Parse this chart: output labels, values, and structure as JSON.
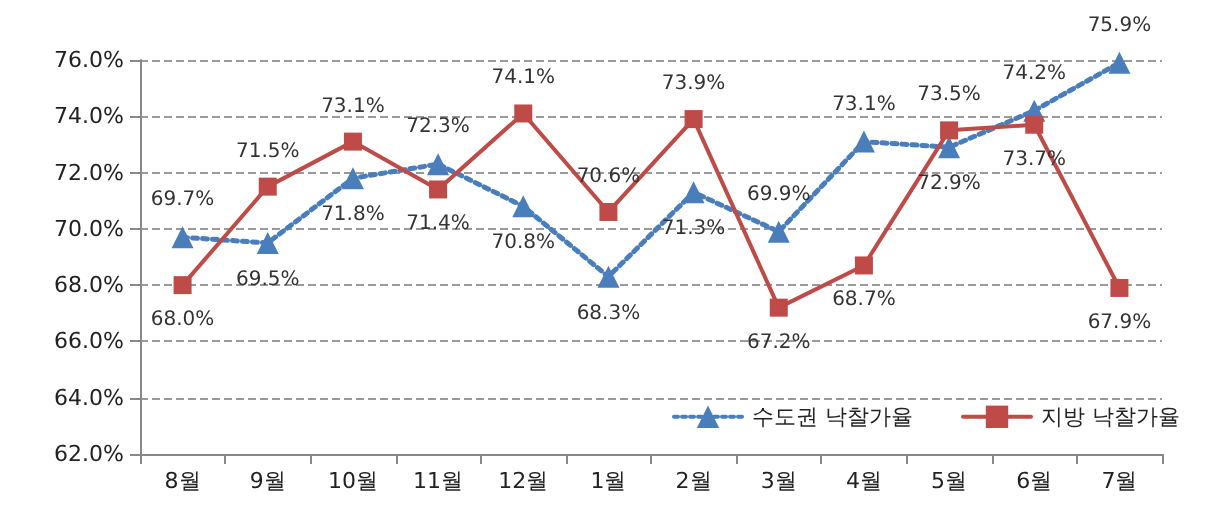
{
  "chart_data": {
    "type": "line",
    "categories": [
      "8월",
      "9월",
      "10월",
      "11월",
      "12월",
      "1월",
      "2월",
      "3월",
      "4월",
      "5월",
      "6월",
      "7월"
    ],
    "series": [
      {
        "name": "수도권 낙찰가율",
        "color": "#4a7ebb",
        "marker": "triangle",
        "line_style": "dotted",
        "values": [
          69.7,
          69.5,
          71.8,
          72.3,
          70.8,
          68.3,
          71.3,
          69.9,
          73.1,
          72.9,
          74.2,
          75.9
        ],
        "value_labels": [
          "69.7%",
          "69.5%",
          "71.8%",
          "72.3%",
          "70.8%",
          "68.3%",
          "71.3%",
          "69.9%",
          "73.1%",
          "72.9%",
          "74.2%",
          "75.9%"
        ]
      },
      {
        "name": "지방 낙찰가율",
        "color": "#be4b48",
        "marker": "square",
        "line_style": "solid",
        "values": [
          68.0,
          71.5,
          73.1,
          71.4,
          74.1,
          70.6,
          73.9,
          67.2,
          68.7,
          73.5,
          73.7,
          67.9
        ],
        "value_labels": [
          "68.0%",
          "71.5%",
          "73.1%",
          "71.4%",
          "74.1%",
          "70.6%",
          "73.9%",
          "67.2%",
          "68.7%",
          "73.5%",
          "73.7%",
          "67.9%"
        ]
      }
    ],
    "ylim": [
      62,
      76
    ],
    "yticks": [
      {
        "value": 62,
        "label": "62.0%"
      },
      {
        "value": 64,
        "label": "64.0%"
      },
      {
        "value": 66,
        "label": "66.0%"
      },
      {
        "value": 68,
        "label": "68.0%"
      },
      {
        "value": 70,
        "label": "70.0%"
      },
      {
        "value": 72,
        "label": "72.0%"
      },
      {
        "value": 74,
        "label": "74.0%"
      },
      {
        "value": 76,
        "label": "76.0%"
      }
    ],
    "grid": "y",
    "legend": "bottom right"
  }
}
